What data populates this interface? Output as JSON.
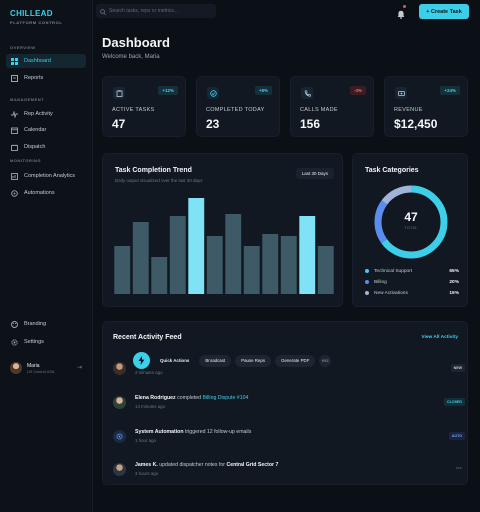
{
  "brand": {
    "title": "CHILLEAD",
    "subtitle": "PLATFORM CONTROL"
  },
  "sidebar": {
    "sections": {
      "overview": "OVERVIEW",
      "management": "MANAGEMENT",
      "monitoring": "MONITORING"
    },
    "items": [
      {
        "label": "Dashboard",
        "icon": "grid-icon"
      },
      {
        "label": "Reports",
        "icon": "report-icon"
      },
      {
        "label": "Rep Activity",
        "icon": "activity-icon"
      },
      {
        "label": "Calendar",
        "icon": "calendar-icon"
      },
      {
        "label": "Dispatch",
        "icon": "dispatch-icon"
      },
      {
        "label": "Completion Analytics",
        "icon": "analytics-icon"
      },
      {
        "label": "Automations",
        "icon": "automation-icon"
      },
      {
        "label": "Branding",
        "icon": "palette-icon"
      },
      {
        "label": "Settings",
        "icon": "gear-icon"
      }
    ],
    "user": {
      "name": "Maria",
      "location": "US Central USA"
    }
  },
  "topbar": {
    "search_placeholder": "Search tasks, reps or metrics...",
    "create_label": "+  Create Task"
  },
  "header": {
    "title": "Dashboard",
    "welcome": "Welcome back, Maria"
  },
  "stats": [
    {
      "label": "ACTIVE TASKS",
      "value": "47",
      "badge": "+12%",
      "trend": "up",
      "icon": "clipboard-icon"
    },
    {
      "label": "COMPLETED TODAY",
      "value": "23",
      "badge": "+8%",
      "trend": "up",
      "icon": "check-circle-icon"
    },
    {
      "label": "CALLS MADE",
      "value": "156",
      "badge": "-3%",
      "trend": "down",
      "icon": "phone-icon"
    },
    {
      "label": "REVENUE",
      "value": "$12,450",
      "badge": "+24%",
      "trend": "up",
      "icon": "dollar-icon"
    }
  ],
  "trend_panel": {
    "title": "Task Completion Trend",
    "subtitle": "Daily output visualized over the last 30 days",
    "range": "Last 30 Days"
  },
  "chart_data": {
    "type": "bar",
    "title": "Task Completion Trend",
    "categories": [
      "",
      "",
      "",
      "",
      "",
      "",
      "",
      "",
      "",
      "",
      "",
      ""
    ],
    "values": [
      48,
      72,
      37,
      78,
      96,
      58,
      80,
      48,
      60,
      58,
      78,
      48
    ],
    "highlight": [
      false,
      false,
      false,
      false,
      true,
      false,
      false,
      false,
      false,
      false,
      true,
      false
    ],
    "ylim": [
      0,
      100
    ],
    "colors": {
      "default": "#3d5a66",
      "highlight": "#7fe3f5"
    }
  },
  "categories_panel": {
    "title": "Task Categories",
    "total": "47",
    "total_label": "TOTAL",
    "items": [
      {
        "label": "Technical Support",
        "pct": "65%",
        "value": 65,
        "color": "#3ecfe8"
      },
      {
        "label": "Billing",
        "pct": "20%",
        "value": 20,
        "color": "#5b8def"
      },
      {
        "label": "New Activations",
        "pct": "15%",
        "value": 15,
        "color": "#9fb4d8"
      }
    ]
  },
  "activity": {
    "title": "Recent Activity Feed",
    "view_all": "View All Activity",
    "rows": [
      {
        "name": "M",
        "action": "",
        "target": "",
        "time": "2 minutes ago",
        "tag": "NEW",
        "tag_color": "#c3ccd6",
        "tag_bg": "#1d2630"
      },
      {
        "name": "Elena Rodriguez",
        "action": "completed",
        "target": "Billing Dispute #104",
        "time": "14 minutes ago",
        "tag": "CLOSED",
        "tag_color": "#3ecfe8",
        "tag_bg": "#13303a"
      },
      {
        "name": "System Automation",
        "action": "triggered 12 follow-up emails",
        "target": "",
        "time": "1 hour ago",
        "tag": "AUTO",
        "tag_color": "#7aa2f7",
        "tag_bg": "#1a2440"
      },
      {
        "name": "James K.",
        "action": "updated dispatcher notes for",
        "target": "Central Grid Sector 7",
        "time": "3 hours ago",
        "tag": "···",
        "tag_color": "#9aa6b3",
        "tag_bg": "transparent"
      }
    ]
  },
  "quick_actions": {
    "label": "Quick Actions",
    "items": [
      "Broadcast",
      "Pause Reps",
      "Generate PDF"
    ],
    "close": "esc"
  }
}
